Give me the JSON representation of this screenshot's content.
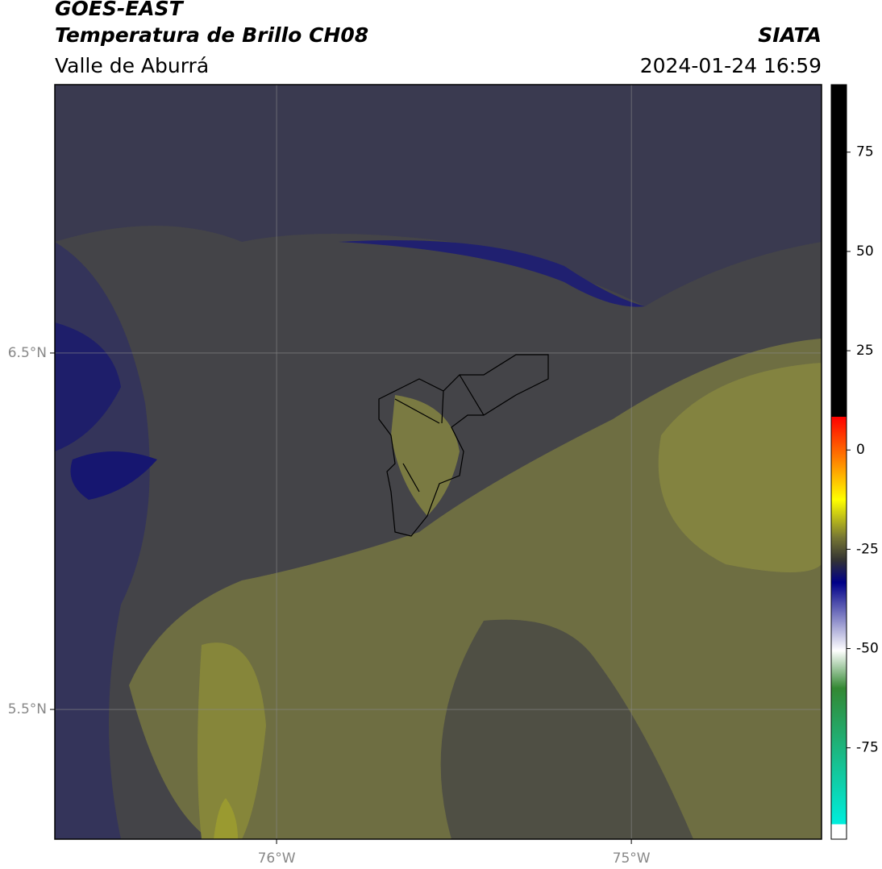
{
  "header": {
    "title": "GOES-EAST",
    "subtitle": "Temperatura de Brillo CH08",
    "region": "Valle de Aburrá",
    "source": "SIATA",
    "timestamp": "2024-01-24 16:59"
  },
  "map": {
    "xlim": [
      -76.625,
      -74.464
    ],
    "ylim": [
      5.136,
      7.253
    ],
    "xticks": [
      {
        "value": -76,
        "label": "76°W"
      },
      {
        "value": -75,
        "label": "75°W"
      }
    ],
    "yticks": [
      {
        "value": 6.5,
        "label": "6.5°N"
      },
      {
        "value": 5.5,
        "label": "5.5°N"
      }
    ],
    "grid": true
  },
  "colorbar": {
    "lim": [
      -98,
      92
    ],
    "ticks": [
      75,
      50,
      25,
      0,
      -25,
      -50,
      -75
    ]
  }
}
